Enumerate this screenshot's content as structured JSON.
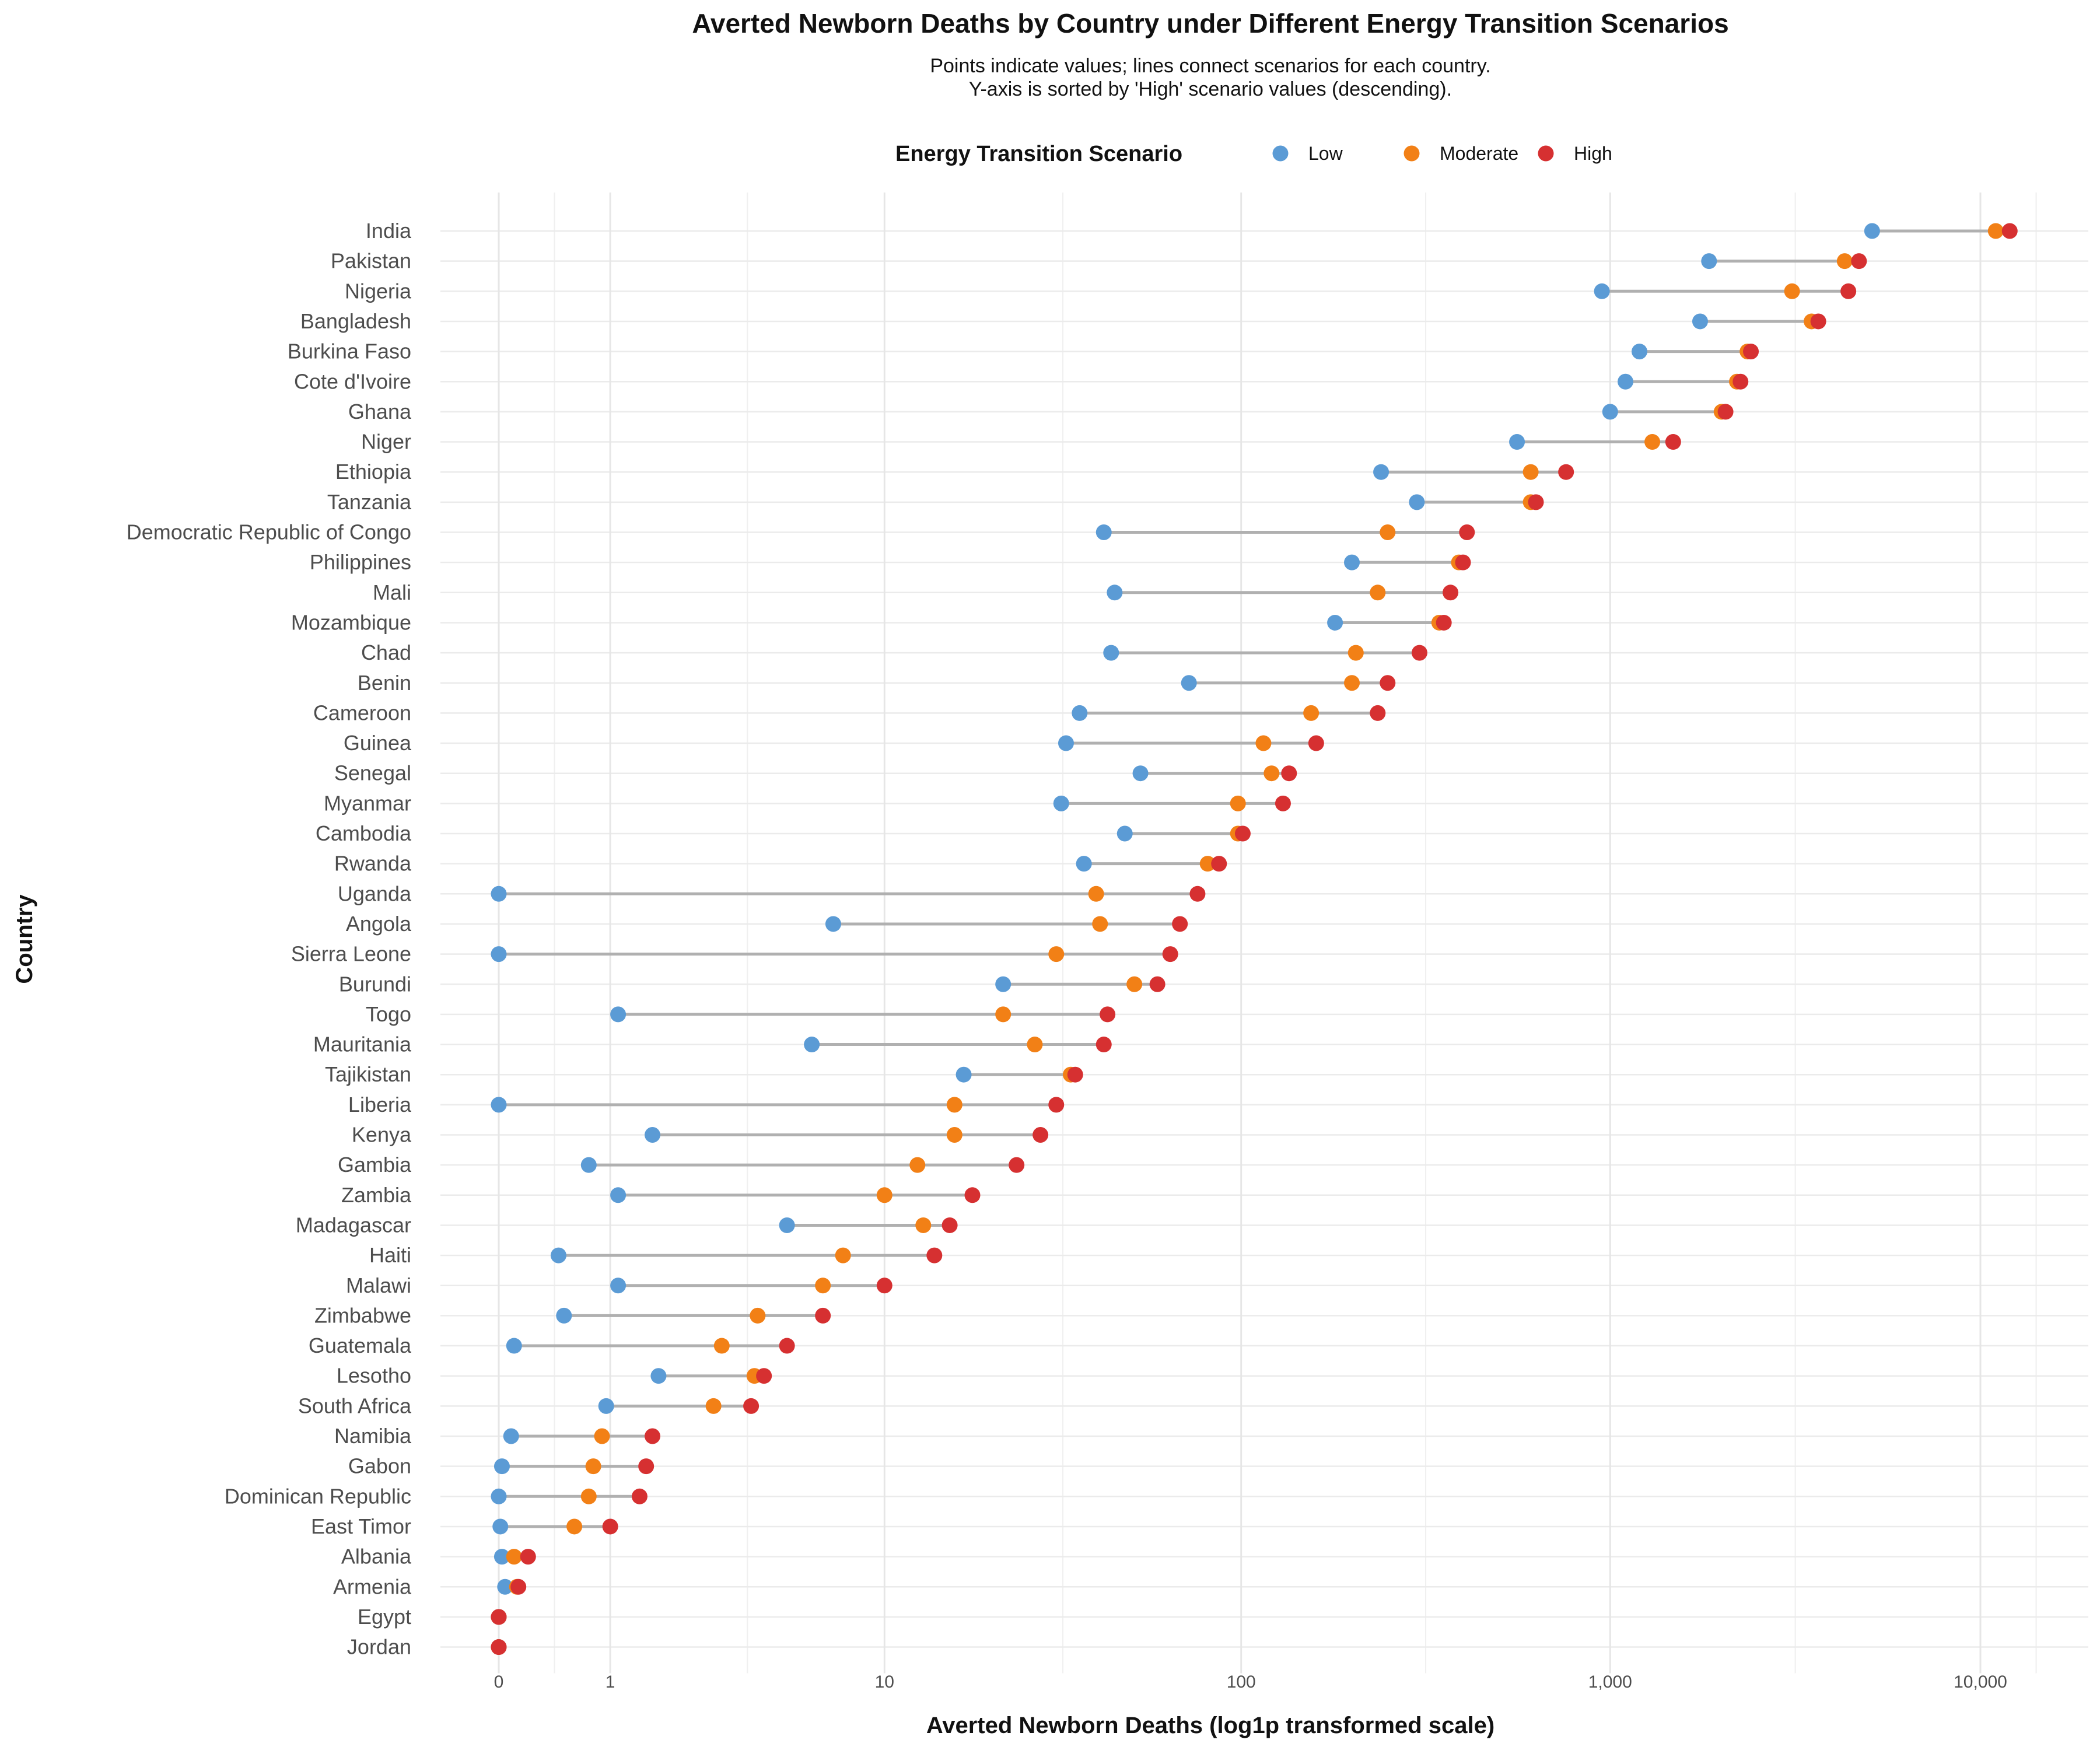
{
  "chart_data": {
    "type": "dumbbell",
    "title": "Averted Newborn Deaths by Country under Different Energy Transition Scenarios",
    "subtitle_lines": [
      "Points indicate values; lines connect scenarios for each country.",
      "Y-axis is sorted by 'High' scenario values (descending)."
    ],
    "xlabel": "Averted Newborn Deaths (log1p transformed scale)",
    "ylabel": "Country",
    "x_scale": "log1p",
    "x_major_ticks": [
      {
        "value": 0,
        "label": "0"
      },
      {
        "value": 1,
        "label": "1"
      },
      {
        "value": 10,
        "label": "10"
      },
      {
        "value": 100,
        "label": "100"
      },
      {
        "value": 1000,
        "label": "1,000"
      },
      {
        "value": 10000,
        "label": "10,000"
      }
    ],
    "xlim": [
      0,
      16000
    ],
    "grid": true,
    "legend": {
      "title": "Energy Transition Scenario",
      "placement": "top",
      "entries": [
        {
          "name": "Low",
          "color": "#5B9BD5"
        },
        {
          "name": "Moderate",
          "color": "#F28016"
        },
        {
          "name": "High",
          "color": "#D63031"
        }
      ]
    },
    "connector_color": "#B0B0B0",
    "countries": [
      {
        "name": "India",
        "low": 5100,
        "moderate": 11000,
        "high": 12000
      },
      {
        "name": "Pakistan",
        "low": 1850,
        "moderate": 4300,
        "high": 4700
      },
      {
        "name": "Nigeria",
        "low": 950,
        "moderate": 3100,
        "high": 4400
      },
      {
        "name": "Bangladesh",
        "low": 1750,
        "moderate": 3500,
        "high": 3650
      },
      {
        "name": "Burkina Faso",
        "low": 1200,
        "moderate": 2350,
        "high": 2400
      },
      {
        "name": "Cote d'Ivoire",
        "low": 1100,
        "moderate": 2200,
        "high": 2250
      },
      {
        "name": "Ghana",
        "low": 1000,
        "moderate": 2000,
        "high": 2050
      },
      {
        "name": "Niger",
        "low": 560,
        "moderate": 1300,
        "high": 1480
      },
      {
        "name": "Ethiopia",
        "low": 240,
        "moderate": 610,
        "high": 760
      },
      {
        "name": "Tanzania",
        "low": 300,
        "moderate": 610,
        "high": 630
      },
      {
        "name": "Democratic Republic of Congo",
        "low": 42,
        "moderate": 250,
        "high": 410
      },
      {
        "name": "Philippines",
        "low": 200,
        "moderate": 390,
        "high": 400
      },
      {
        "name": "Mali",
        "low": 45,
        "moderate": 235,
        "high": 370
      },
      {
        "name": "Mozambique",
        "low": 180,
        "moderate": 345,
        "high": 355
      },
      {
        "name": "Chad",
        "low": 44,
        "moderate": 205,
        "high": 305
      },
      {
        "name": "Benin",
        "low": 72,
        "moderate": 200,
        "high": 250
      },
      {
        "name": "Cameroon",
        "low": 36,
        "moderate": 155,
        "high": 235
      },
      {
        "name": "Guinea",
        "low": 33,
        "moderate": 115,
        "high": 160
      },
      {
        "name": "Senegal",
        "low": 53,
        "moderate": 121,
        "high": 135
      },
      {
        "name": "Myanmar",
        "low": 32,
        "moderate": 98,
        "high": 130
      },
      {
        "name": "Cambodia",
        "low": 48,
        "moderate": 98,
        "high": 101
      },
      {
        "name": "Rwanda",
        "low": 37,
        "moderate": 81,
        "high": 87
      },
      {
        "name": "Uganda",
        "low": 0,
        "moderate": 40,
        "high": 76
      },
      {
        "name": "Angola",
        "low": 7,
        "moderate": 41,
        "high": 68
      },
      {
        "name": "Sierra Leone",
        "low": 0,
        "moderate": 31,
        "high": 64
      },
      {
        "name": "Burundi",
        "low": 22,
        "moderate": 51,
        "high": 59
      },
      {
        "name": "Togo",
        "low": 1.1,
        "moderate": 22,
        "high": 43
      },
      {
        "name": "Mauritania",
        "low": 6,
        "moderate": 27,
        "high": 42
      },
      {
        "name": "Tajikistan",
        "low": 17,
        "moderate": 34,
        "high": 35
      },
      {
        "name": "Liberia",
        "low": 0,
        "moderate": 16,
        "high": 31
      },
      {
        "name": "Kenya",
        "low": 1.6,
        "moderate": 16,
        "high": 28
      },
      {
        "name": "Gambia",
        "low": 0.75,
        "moderate": 12.5,
        "high": 24
      },
      {
        "name": "Zambia",
        "low": 1.1,
        "moderate": 10,
        "high": 18
      },
      {
        "name": "Madagascar",
        "low": 5,
        "moderate": 13,
        "high": 15.5
      },
      {
        "name": "Haiti",
        "low": 0.45,
        "moderate": 7.5,
        "high": 14
      },
      {
        "name": "Malawi",
        "low": 1.1,
        "moderate": 6.5,
        "high": 10
      },
      {
        "name": "Zimbabwe",
        "low": 0.5,
        "moderate": 4,
        "high": 6.5
      },
      {
        "name": "Guatemala",
        "low": 0.1,
        "moderate": 3,
        "high": 5
      },
      {
        "name": "Lesotho",
        "low": 1.7,
        "moderate": 3.9,
        "high": 4.2
      },
      {
        "name": "South Africa",
        "low": 0.95,
        "moderate": 2.8,
        "high": 3.8
      },
      {
        "name": "Namibia",
        "low": 0.08,
        "moderate": 0.9,
        "high": 1.6
      },
      {
        "name": "Gabon",
        "low": 0.02,
        "moderate": 0.8,
        "high": 1.5
      },
      {
        "name": "Dominican Republic",
        "low": 0.0,
        "moderate": 0.75,
        "high": 1.4
      },
      {
        "name": "East Timor",
        "low": 0.01,
        "moderate": 0.6,
        "high": 1.0
      },
      {
        "name": "Albania",
        "low": 0.02,
        "moderate": 0.1,
        "high": 0.2
      },
      {
        "name": "Armenia",
        "low": 0.04,
        "moderate": 0.12,
        "high": 0.13
      },
      {
        "name": "Egypt",
        "low": 0.0,
        "moderate": 0.0,
        "high": 0.0
      },
      {
        "name": "Jordan",
        "low": 0.0,
        "moderate": 0.0,
        "high": 0.0
      }
    ]
  }
}
